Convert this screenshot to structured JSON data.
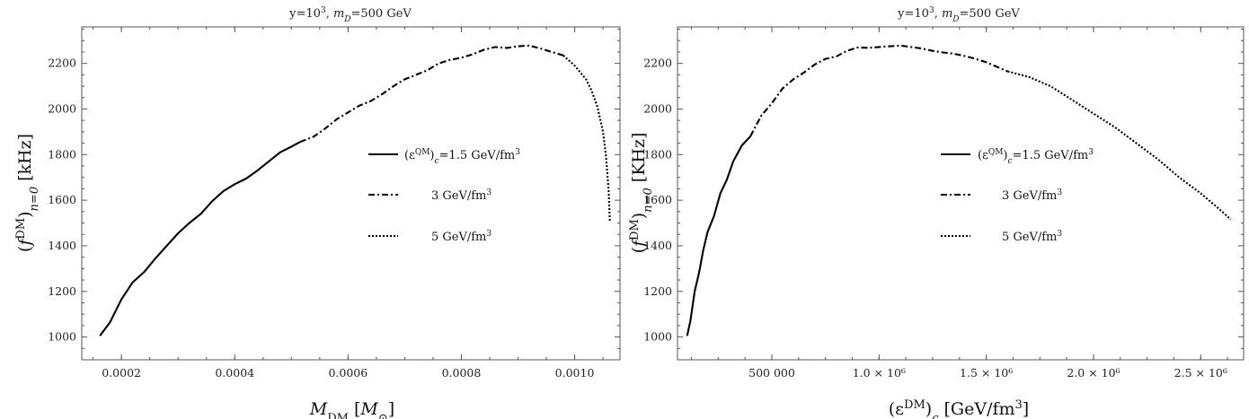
{
  "chart_data": [
    {
      "type": "line",
      "title": "y=10³, m_D=500 GeV",
      "title_parts": {
        "prefix": "y=10",
        "sup": "3",
        "comma": ", ",
        "m": "m",
        "sub": "D",
        "rest": "=500 GeV"
      },
      "xlabel": "M_DM [M_⊙]",
      "xlabel_parts": {
        "m": "M",
        "sub": "DM",
        "rest": " [",
        "m2": "M",
        "sub2": "⊙",
        "close": "]"
      },
      "ylabel": "(f^DM)_{n=0} [kHz]",
      "ylabel_parts": {
        "open": "(",
        "f": "f",
        "sup": "DM",
        "close": ")",
        "sub": "n=0",
        "unit": " [kHz]"
      },
      "xlim": [
        0.00013,
        0.00108
      ],
      "ylim": [
        900,
        2360
      ],
      "xticks": [
        0.0002,
        0.0004,
        0.0006,
        0.0008,
        0.001
      ],
      "xtick_labels": [
        "0.0002",
        "0.0004",
        "0.0006",
        "0.0008",
        "0.0010"
      ],
      "yticks": [
        1000,
        1200,
        1400,
        1600,
        1800,
        2000,
        2200
      ],
      "ytick_labels": [
        "1000",
        "1200",
        "1400",
        "1600",
        "1800",
        "2000",
        "2200"
      ],
      "legend_placement": "right",
      "series": [
        {
          "name": "(ε^QM)_c=1.5 GeV/fm³",
          "style": "solid",
          "x": [
            0.000162,
            0.00018,
            0.0002,
            0.00022,
            0.00024,
            0.00026,
            0.00028,
            0.0003,
            0.00032,
            0.00034,
            0.00036,
            0.00038,
            0.0004,
            0.00042,
            0.00044,
            0.00046,
            0.00048,
            0.0005,
            0.000515
          ],
          "y": [
            1005,
            1065,
            1165,
            1240,
            1285,
            1345,
            1400,
            1455,
            1500,
            1540,
            1595,
            1640,
            1670,
            1695,
            1730,
            1770,
            1810,
            1835,
            1855
          ]
        },
        {
          "name": "3 GeV/fm³",
          "style": "dashdot",
          "x": [
            0.000515,
            0.00054,
            0.00056,
            0.00058,
            0.0006,
            0.00062,
            0.00064,
            0.00066,
            0.00068,
            0.0007,
            0.00072,
            0.00074,
            0.00076,
            0.00078,
            0.0008,
            0.00082,
            0.00084,
            0.00086,
            0.00088,
            0.0009,
            0.00092,
            0.00094,
            0.00096,
            0.00098
          ],
          "y": [
            1855,
            1880,
            1915,
            1955,
            1985,
            2015,
            2035,
            2065,
            2100,
            2130,
            2150,
            2170,
            2200,
            2215,
            2225,
            2240,
            2260,
            2272,
            2268,
            2275,
            2278,
            2265,
            2250,
            2235
          ]
        },
        {
          "name": "5 GeV/fm³",
          "style": "dotted",
          "x": [
            0.00098,
            0.001,
            0.00102,
            0.00103,
            0.00104,
            0.00105,
            0.001055,
            0.00106,
            0.001062
          ],
          "y": [
            2235,
            2190,
            2130,
            2080,
            2010,
            1900,
            1800,
            1640,
            1510
          ]
        }
      ]
    },
    {
      "type": "line",
      "title": "y=10³, m_D=500 GeV",
      "title_parts": {
        "prefix": "y=10",
        "sup": "3",
        "comma": ", ",
        "m": "m",
        "sub": "D",
        "rest": "=500 GeV"
      },
      "xlabel": "(ε^DM)_c [GeV/fm³]",
      "xlabel_parts": {
        "open": "(ε",
        "sup": "DM",
        "close": ")",
        "sub": "c",
        "unit": " [GeV/fm",
        "unitsup": "3",
        "end": "]"
      },
      "ylabel": "(f^DM)_{n=0} [KHz]",
      "ylabel_parts": {
        "open": "(",
        "f": "f",
        "sup": "DM",
        "close": ")",
        "sub": "n=0",
        "unit": " [KHz]"
      },
      "xlim": [
        60000,
        2700000
      ],
      "ylim": [
        900,
        2360
      ],
      "xticks": [
        500000,
        1000000,
        1500000,
        2000000,
        2500000
      ],
      "xtick_labels": [
        "500 000",
        "1.0 × 10⁶",
        "1.5 × 10⁶",
        "2.0 × 10⁶",
        "2.5 × 10⁶"
      ],
      "yticks": [
        1000,
        1200,
        1400,
        1600,
        1800,
        2000,
        2200
      ],
      "ytick_labels": [
        "1000",
        "1200",
        "1400",
        "1600",
        "1800",
        "2000",
        "2200"
      ],
      "legend_placement": "center",
      "series": [
        {
          "name": "(ε^QM)_c=1.5 GeV/fm³",
          "style": "solid",
          "x": [
            105000,
            120000,
            140000,
            160000,
            180000,
            200000,
            230000,
            260000,
            290000,
            320000,
            360000,
            400000
          ],
          "y": [
            1005,
            1070,
            1200,
            1280,
            1380,
            1460,
            1530,
            1630,
            1690,
            1770,
            1840,
            1880
          ]
        },
        {
          "name": "3 GeV/fm³",
          "style": "dashdot",
          "x": [
            400000,
            450000,
            500000,
            550000,
            600000,
            650000,
            700000,
            750000,
            800000,
            850000,
            900000,
            950000,
            1000000,
            1050000,
            1100000,
            1150000,
            1200000,
            1250000,
            1300000,
            1350000,
            1400000,
            1450000,
            1500000,
            1550000,
            1600000
          ],
          "y": [
            1880,
            1970,
            2025,
            2090,
            2130,
            2160,
            2195,
            2220,
            2230,
            2255,
            2270,
            2268,
            2272,
            2275,
            2278,
            2272,
            2265,
            2255,
            2248,
            2242,
            2232,
            2220,
            2205,
            2185,
            2165
          ]
        },
        {
          "name": "5 GeV/fm³",
          "style": "dotted",
          "x": [
            1600000,
            1700000,
            1800000,
            1900000,
            2000000,
            2100000,
            2200000,
            2300000,
            2400000,
            2500000,
            2600000,
            2640000
          ],
          "y": [
            2165,
            2140,
            2100,
            2040,
            1980,
            1920,
            1850,
            1780,
            1700,
            1630,
            1550,
            1515
          ]
        }
      ]
    }
  ]
}
